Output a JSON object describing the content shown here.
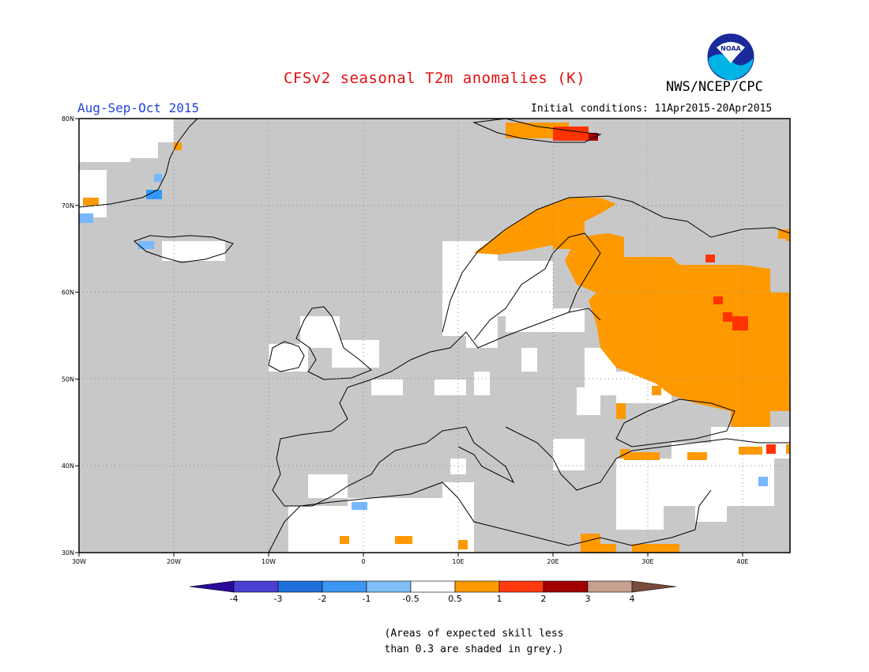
{
  "header": {
    "title": "CFSv2 seasonal T2m anomalies (K)",
    "agency": "NWS/NCEP/CPC",
    "season": "Aug-Sep-Oct 2015",
    "initial_conditions": "Initial conditions: 11Apr2015-20Apr2015",
    "logo_text": "NOAA"
  },
  "map": {
    "lat_ticks": [
      {
        "value": 80,
        "label": "80N"
      },
      {
        "value": 70,
        "label": "70N"
      },
      {
        "value": 60,
        "label": "60N"
      },
      {
        "value": 50,
        "label": "50N"
      },
      {
        "value": 40,
        "label": "40N"
      },
      {
        "value": 30,
        "label": "30N"
      }
    ],
    "lon_ticks": [
      {
        "value": -30,
        "label": "30W"
      },
      {
        "value": -20,
        "label": "20W"
      },
      {
        "value": -10,
        "label": "10W"
      },
      {
        "value": 0,
        "label": "0"
      },
      {
        "value": 10,
        "label": "10E"
      },
      {
        "value": 20,
        "label": "20E"
      },
      {
        "value": 30,
        "label": "30E"
      },
      {
        "value": 40,
        "label": "40E"
      }
    ],
    "lon_range": [
      -30,
      45
    ],
    "lat_range": [
      30,
      80
    ],
    "colors": {
      "skill_grey": "#c8c8c8",
      "neutral": "#ffffff",
      "warm_0_5_1": "#ff9900",
      "warm_1_2": "#ff3300",
      "warm_2_3": "#aa0000",
      "cool_m1_m0_5": "#77b8ff",
      "cool_m2_m1": "#3399ff",
      "coastline": "#000000",
      "grid": "#888888"
    }
  },
  "colorbar": {
    "labels": [
      "-4",
      "-3",
      "-2",
      "-1",
      "-0.5",
      "0.5",
      "1",
      "2",
      "3",
      "4"
    ],
    "colors": [
      "#2a0a9a",
      "#4a3fd0",
      "#1f6fd8",
      "#3d96f0",
      "#7fbff5",
      "#ffffff",
      "#ff9a00",
      "#ff3a10",
      "#a00000",
      "#c8a090",
      "#7a4a3a"
    ]
  },
  "note": {
    "line1": "(Areas of expected skill less",
    "line2": "than 0.3 are shaded in grey.)"
  }
}
